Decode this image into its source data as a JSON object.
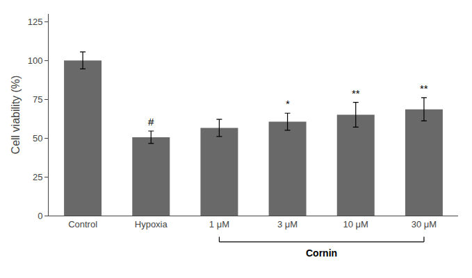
{
  "chart_data": {
    "type": "bar",
    "categories": [
      "Control",
      "Hypoxia",
      "1 μM",
      "3 μM",
      "10 μM",
      "30 μM"
    ],
    "values": [
      100.0,
      50.5,
      56.5,
      60.5,
      65.0,
      68.5
    ],
    "errors": [
      5.5,
      4.0,
      5.5,
      5.5,
      8.0,
      7.5
    ],
    "color": "#696969",
    "ylabel": "Cell viability (%)",
    "ylim": [
      0,
      130
    ],
    "yticks": [
      0,
      25,
      50,
      75,
      100,
      125
    ],
    "grid": false,
    "annotations": [
      {
        "category": "Hypoxia",
        "text": "#"
      },
      {
        "category": "3 μM",
        "text": "*"
      },
      {
        "category": "10 μM",
        "text": "**"
      },
      {
        "category": "30 μM",
        "text": "**"
      }
    ],
    "bracket": {
      "text": "Cornin",
      "from": "1 μM",
      "to": "30 μM"
    }
  }
}
